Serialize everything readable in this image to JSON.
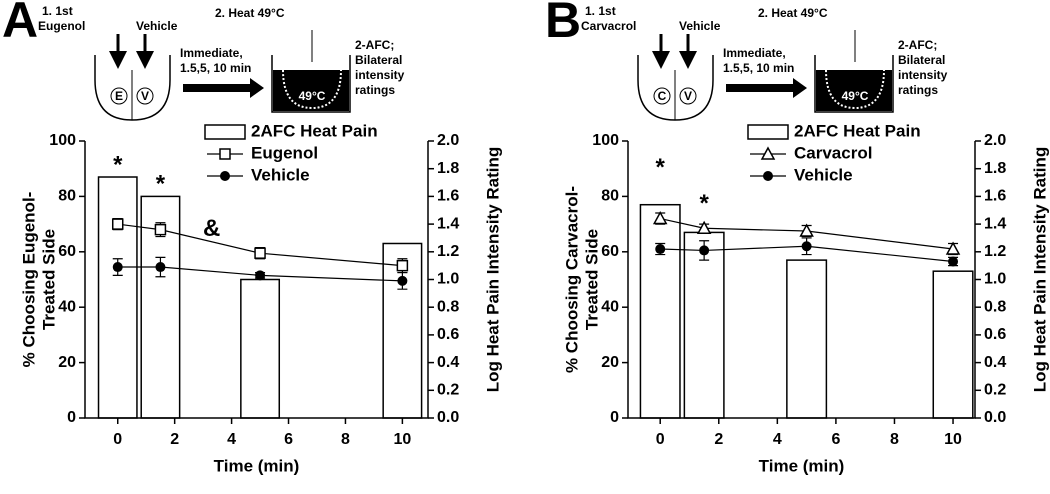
{
  "chart_data": [
    {
      "type": "combo",
      "panel": "A",
      "diagram": {
        "step1": "1. 1st",
        "agent": "Eugenol",
        "vehicle": "Vehicle",
        "agent_letter": "E",
        "vehicle_letter": "V",
        "step2": "2. Heat 49°C",
        "timing": [
          "Immediate,",
          "1.5,5, 10 min"
        ],
        "bath": "49°C",
        "measure": [
          "2-AFC;",
          "Bilateral",
          "intensity",
          "ratings"
        ]
      },
      "xlabel": "Time (min)",
      "ylabel": [
        "% Choosing Eugenol-",
        "Treated Side"
      ],
      "y2label": "Log Heat Pain Intensity Rating",
      "xlim": [
        -1.15,
        10.9
      ],
      "xticks": [
        0,
        2,
        4,
        6,
        8,
        10
      ],
      "ylim": [
        0,
        100
      ],
      "yticks": [
        0,
        20,
        40,
        60,
        80,
        100
      ],
      "y2lim": [
        0,
        2
      ],
      "y2ticks": [
        {
          "value": 0,
          "label": "0.0"
        },
        0.2,
        0.4,
        0.6,
        0.8,
        {
          "value": 1,
          "label": "1.0"
        },
        1.2,
        1.4,
        1.6,
        1.8,
        {
          "value": 2,
          "label": "2.0"
        }
      ],
      "x": [
        0,
        1.5,
        5,
        10
      ],
      "series": [
        {
          "name": "2AFC Heat Pain",
          "kind": "bar",
          "color": "#000000",
          "values": [
            87,
            80,
            50,
            63
          ]
        },
        {
          "name": "Eugenol",
          "kind": "line",
          "marker": "square",
          "color": "#000000",
          "axis": "y2",
          "values": [
            1.4,
            1.36,
            1.19,
            1.1
          ],
          "errors": [
            0.04,
            0.05,
            0.04,
            0.05
          ]
        },
        {
          "name": "Vehicle",
          "kind": "line",
          "marker": "circle",
          "color": "#000000",
          "axis": "y2",
          "values": [
            1.09,
            1.09,
            1.03,
            0.99
          ],
          "errors": [
            0.06,
            0.07,
            0.02,
            0.06
          ]
        }
      ],
      "annotations": [
        {
          "text": "*",
          "x": 0,
          "y": 91
        },
        {
          "text": "*",
          "x": 1.5,
          "y": 84
        },
        {
          "text": "&",
          "x": 3.3,
          "y": 68
        }
      ]
    },
    {
      "type": "combo",
      "panel": "B",
      "diagram": {
        "step1": "1. 1st",
        "agent": "Carvacrol",
        "vehicle": "Vehicle",
        "agent_letter": "C",
        "vehicle_letter": "V",
        "step2": "2. Heat 49°C",
        "timing": [
          "Immediate,",
          "1.5,5, 10 min"
        ],
        "bath": "49°C",
        "measure": [
          "2-AFC;",
          "Bilateral",
          "intensity",
          "ratings"
        ]
      },
      "xlabel": "Time (min)",
      "ylabel": [
        "% Choosing Carvacrol-",
        "Treated Side"
      ],
      "y2label": "Log Heat Pain Intensity Rating",
      "xlim": [
        -1.1,
        10.75
      ],
      "xticks": [
        0,
        2,
        4,
        6,
        8,
        10
      ],
      "ylim": [
        0,
        100
      ],
      "yticks": [
        0,
        20,
        40,
        60,
        80,
        100
      ],
      "y2lim": [
        0,
        2
      ],
      "y2ticks": [
        {
          "value": 0,
          "label": "0.0"
        },
        0.2,
        0.4,
        0.6,
        0.8,
        {
          "value": 1,
          "label": "1.0"
        },
        1.2,
        1.4,
        1.6,
        1.8,
        {
          "value": 2,
          "label": "2.0"
        }
      ],
      "x": [
        0,
        1.5,
        5,
        10
      ],
      "series": [
        {
          "name": "2AFC Heat Pain",
          "kind": "bar",
          "color": "#000000",
          "values": [
            77,
            67,
            57,
            53
          ]
        },
        {
          "name": "Carvacrol",
          "kind": "line",
          "marker": "triangle",
          "color": "#000000",
          "axis": "y2",
          "values": [
            1.44,
            1.37,
            1.35,
            1.22
          ],
          "errors": [
            0.04,
            0.03,
            0.04,
            0.04
          ]
        },
        {
          "name": "Vehicle",
          "kind": "line",
          "marker": "circle",
          "color": "#000000",
          "axis": "y2",
          "values": [
            1.22,
            1.21,
            1.24,
            1.13
          ],
          "errors": [
            0.04,
            0.07,
            0.06,
            0.03
          ]
        }
      ],
      "annotations": [
        {
          "text": "*",
          "x": 0,
          "y": 90
        },
        {
          "text": "*",
          "x": 1.5,
          "y": 77
        }
      ]
    }
  ]
}
